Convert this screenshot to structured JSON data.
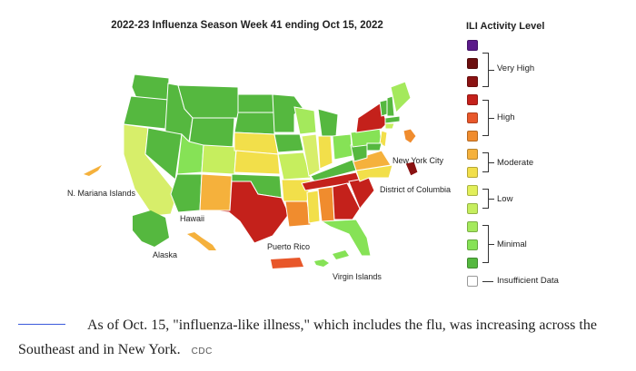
{
  "map": {
    "title": "2022-23 Influenza Season Week 41 ending Oct 15, 2022",
    "labels": {
      "mariana": "N. Mariana Islands",
      "hawaii": "Hawaii",
      "alaska": "Alaska",
      "puerto_rico": "Puerto Rico",
      "virgin_islands": "Virgin Islands",
      "new_york_city": "New York City",
      "dc": "District of Columbia"
    },
    "icons": [
      "map-of-us-icon"
    ]
  },
  "legend": {
    "title": "ILI Activity Level",
    "groups": {
      "very_high": "Very High",
      "high": "High",
      "moderate": "Moderate",
      "low": "Low",
      "minimal": "Minimal",
      "insufficient": "Insufficient Data"
    },
    "colors": [
      "#5b1a8a",
      "#6b0e0e",
      "#8a1212",
      "#c4211b",
      "#e8572a",
      "#f08c2e",
      "#f5b13c",
      "#f2df4a",
      "#e2ef5a",
      "#c6ee5e",
      "#a4e95c",
      "#86e256",
      "#55b83f",
      "#ffffff"
    ]
  },
  "caption": {
    "text": "As of Oct. 15, \"influenza-like illness,\" which includes the flu, was increasing across the Southeast and in New York.",
    "credit": "CDC"
  }
}
